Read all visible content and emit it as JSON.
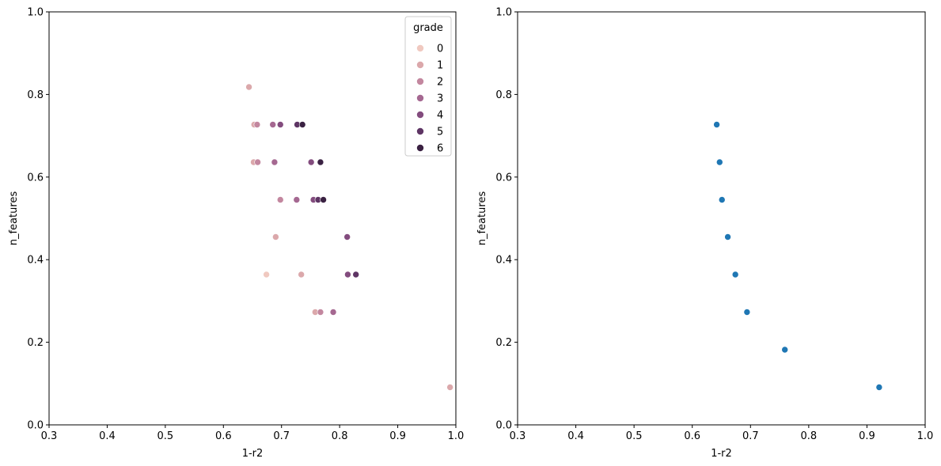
{
  "chart_data": [
    {
      "type": "scatter",
      "title": "",
      "xlabel": "1-r2",
      "ylabel": "n_features",
      "xlim": [
        0.3,
        1.0
      ],
      "ylim": [
        0.0,
        1.0
      ],
      "xticks": [
        "0.3",
        "0.4",
        "0.5",
        "0.6",
        "0.7",
        "0.8",
        "0.9",
        "1.0"
      ],
      "yticks": [
        "0.0",
        "0.2",
        "0.4",
        "0.6",
        "0.8",
        "1.0"
      ],
      "legend": {
        "title": "grade",
        "location": "top-right",
        "entries": [
          {
            "label": "0",
            "color": "#f0c9c0"
          },
          {
            "label": "1",
            "color": "#dba8ab"
          },
          {
            "label": "2",
            "color": "#c3879f"
          },
          {
            "label": "3",
            "color": "#a56891"
          },
          {
            "label": "4",
            "color": "#834c7e"
          },
          {
            "label": "5",
            "color": "#5e3564"
          },
          {
            "label": "6",
            "color": "#3a2142"
          }
        ]
      },
      "points": [
        {
          "x": 0.644,
          "y": 0.818,
          "grade": 1
        },
        {
          "x": 0.653,
          "y": 0.727,
          "grade": 1
        },
        {
          "x": 0.658,
          "y": 0.727,
          "grade": 2
        },
        {
          "x": 0.685,
          "y": 0.727,
          "grade": 3
        },
        {
          "x": 0.698,
          "y": 0.727,
          "grade": 4
        },
        {
          "x": 0.727,
          "y": 0.727,
          "grade": 5
        },
        {
          "x": 0.736,
          "y": 0.727,
          "grade": 6
        },
        {
          "x": 0.652,
          "y": 0.636,
          "grade": 1
        },
        {
          "x": 0.659,
          "y": 0.636,
          "grade": 2
        },
        {
          "x": 0.688,
          "y": 0.636,
          "grade": 3
        },
        {
          "x": 0.751,
          "y": 0.636,
          "grade": 4
        },
        {
          "x": 0.767,
          "y": 0.636,
          "grade": 6
        },
        {
          "x": 0.698,
          "y": 0.545,
          "grade": 2
        },
        {
          "x": 0.726,
          "y": 0.545,
          "grade": 3
        },
        {
          "x": 0.755,
          "y": 0.545,
          "grade": 4
        },
        {
          "x": 0.763,
          "y": 0.545,
          "grade": 5
        },
        {
          "x": 0.772,
          "y": 0.545,
          "grade": 6
        },
        {
          "x": 0.69,
          "y": 0.455,
          "grade": 1
        },
        {
          "x": 0.813,
          "y": 0.455,
          "grade": 4
        },
        {
          "x": 0.674,
          "y": 0.364,
          "grade": 0
        },
        {
          "x": 0.734,
          "y": 0.364,
          "grade": 1
        },
        {
          "x": 0.814,
          "y": 0.364,
          "grade": 4
        },
        {
          "x": 0.828,
          "y": 0.364,
          "grade": 5
        },
        {
          "x": 0.758,
          "y": 0.273,
          "grade": 1
        },
        {
          "x": 0.767,
          "y": 0.273,
          "grade": 2
        },
        {
          "x": 0.789,
          "y": 0.273,
          "grade": 3
        },
        {
          "x": 0.99,
          "y": 0.091,
          "grade": 1
        }
      ]
    },
    {
      "type": "scatter",
      "title": "",
      "xlabel": "1-r2",
      "ylabel": "n_features",
      "xlim": [
        0.3,
        1.0
      ],
      "ylim": [
        0.0,
        1.0
      ],
      "xticks": [
        "0.3",
        "0.4",
        "0.5",
        "0.6",
        "0.7",
        "0.8",
        "0.9",
        "1.0"
      ],
      "yticks": [
        "0.0",
        "0.2",
        "0.4",
        "0.6",
        "0.8",
        "1.0"
      ],
      "color": "#1f77b4",
      "points": [
        {
          "x": 0.642,
          "y": 0.727
        },
        {
          "x": 0.647,
          "y": 0.636
        },
        {
          "x": 0.651,
          "y": 0.545
        },
        {
          "x": 0.661,
          "y": 0.455
        },
        {
          "x": 0.674,
          "y": 0.364
        },
        {
          "x": 0.694,
          "y": 0.273
        },
        {
          "x": 0.759,
          "y": 0.182
        },
        {
          "x": 0.921,
          "y": 0.091
        }
      ]
    }
  ]
}
